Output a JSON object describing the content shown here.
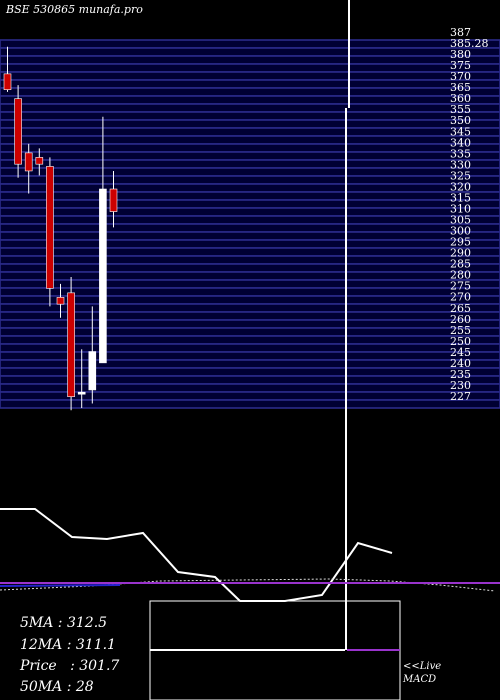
{
  "title": "BSE 530865 munafa.pro",
  "chart_data": {
    "type": "candlestick",
    "title": "BSE 530865 munafa.pro",
    "price_labels": [
      "387",
      "385.28",
      "380",
      "375",
      "370",
      "365",
      "360",
      "355",
      "350",
      "345",
      "340",
      "335",
      "330",
      "325",
      "320",
      "315",
      "310",
      "305",
      "300",
      "295",
      "290",
      "285",
      "280",
      "275",
      "270",
      "265",
      "260",
      "255",
      "250",
      "245",
      "240",
      "235",
      "230",
      "227"
    ],
    "ylim": [
      225,
      388
    ],
    "candles": [
      {
        "open": 373,
        "high": 385,
        "low": 365,
        "close": 366
      },
      {
        "open": 362,
        "high": 368,
        "low": 327,
        "close": 333
      },
      {
        "open": 338,
        "high": 342,
        "low": 320,
        "close": 330
      },
      {
        "open": 336,
        "high": 340,
        "low": 328,
        "close": 333
      },
      {
        "open": 332,
        "high": 336,
        "low": 270,
        "close": 278
      },
      {
        "open": 274,
        "high": 280,
        "low": 265,
        "close": 271
      },
      {
        "open": 276,
        "high": 283,
        "low": 224,
        "close": 230
      },
      {
        "open": 232,
        "high": 251,
        "low": 225,
        "close": 232
      },
      {
        "open": 233,
        "high": 270,
        "low": 227,
        "close": 250
      },
      {
        "open": 245,
        "high": 354,
        "low": 245,
        "close": 322
      },
      {
        "open": 322,
        "high": 330,
        "low": 305,
        "close": 312
      }
    ],
    "moving_averages": {
      "5MA": 312.5,
      "12MA": 311.1,
      "Price": 301.7,
      "50MA": 28
    },
    "macd_label": "<<Live MACD"
  },
  "info": {
    "ma5_label": "5MA : 312.5",
    "ma12_label": "12MA : 311.1",
    "price_label": "Price   : 301.7",
    "ma50_label": "50MA : 28"
  },
  "macd": {
    "live": "<<Live",
    "name": "MACD"
  },
  "colors": {
    "background": "#000000",
    "band_dark": "#000033",
    "band_light": "#2a2a8a",
    "bear": "#cc0000",
    "bull": "#ffffff",
    "macd_purple": "#9933cc",
    "macd_blue": "#2222cc"
  }
}
